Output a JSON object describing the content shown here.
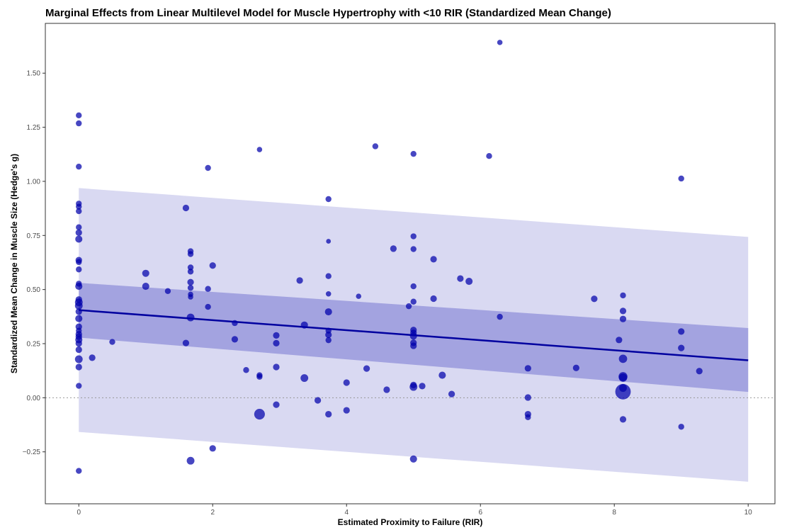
{
  "chart_data": {
    "type": "scatter",
    "title": "Marginal Effects from Linear Multilevel Model for Muscle Hypertrophy with <10 RIR (Standardized Mean Change)",
    "xlabel": "Estimated Proximity to Failure (RIR)",
    "ylabel": "Standardized Mean Change in Muscle Size (Hedge's g)",
    "xlim": [
      -0.5,
      10.4
    ],
    "ylim": [
      -0.49,
      1.73
    ],
    "x_ticks": [
      0,
      2,
      4,
      6,
      8,
      10
    ],
    "y_ticks": [
      -0.25,
      0.0,
      0.25,
      0.5,
      0.75,
      1.0,
      1.25,
      1.5
    ],
    "y_tick_labels": [
      "−0.25",
      "0.00",
      "0.25",
      "0.50",
      "0.75",
      "1.00",
      "1.25",
      "1.50"
    ],
    "grid": false,
    "reference_line": {
      "y": 0,
      "style": "dotted"
    },
    "fit_line": {
      "x": [
        0,
        10
      ],
      "y": [
        0.405,
        0.173
      ]
    },
    "ci_inner": {
      "x": [
        0,
        10
      ],
      "lower": [
        0.278,
        0.027
      ],
      "upper": [
        0.531,
        0.322
      ]
    },
    "pi_outer": {
      "x": [
        0,
        10
      ],
      "lower": [
        -0.158,
        -0.388
      ],
      "upper": [
        0.969,
        0.743
      ]
    },
    "colors": {
      "points": "#0000aa",
      "fit_line": "#00009f",
      "ci_band": "#a3a3e0",
      "pi_band": "#d9d9f2",
      "zero_line": "#999999"
    },
    "points": [
      {
        "x": 0,
        "y": 1.305,
        "s": 1.0
      },
      {
        "x": 0,
        "y": 1.268,
        "s": 1.0
      },
      {
        "x": 0,
        "y": 1.068,
        "s": 1.0
      },
      {
        "x": 0,
        "y": 0.897,
        "s": 1.0
      },
      {
        "x": 0,
        "y": 0.883,
        "s": 1.0
      },
      {
        "x": 0,
        "y": 0.862,
        "s": 1.0
      },
      {
        "x": 0,
        "y": 0.788,
        "s": 1.0
      },
      {
        "x": 0,
        "y": 0.763,
        "s": 1.1
      },
      {
        "x": 0,
        "y": 0.733,
        "s": 1.2
      },
      {
        "x": 0,
        "y": 0.636,
        "s": 1.1
      },
      {
        "x": 0,
        "y": 0.627,
        "s": 1.0
      },
      {
        "x": 0,
        "y": 0.593,
        "s": 1.0
      },
      {
        "x": 0,
        "y": 0.527,
        "s": 1.0
      },
      {
        "x": 0,
        "y": 0.515,
        "s": 1.2
      },
      {
        "x": 0,
        "y": 0.454,
        "s": 1.1
      },
      {
        "x": 0,
        "y": 0.441,
        "s": 1.3
      },
      {
        "x": 0,
        "y": 0.425,
        "s": 1.3
      },
      {
        "x": 0,
        "y": 0.398,
        "s": 1.1
      },
      {
        "x": 0,
        "y": 0.366,
        "s": 1.2
      },
      {
        "x": 0,
        "y": 0.328,
        "s": 1.1
      },
      {
        "x": 0,
        "y": 0.31,
        "s": 1.0
      },
      {
        "x": 0,
        "y": 0.294,
        "s": 1.1
      },
      {
        "x": 0,
        "y": 0.282,
        "s": 1.1
      },
      {
        "x": 0,
        "y": 0.268,
        "s": 1.2
      },
      {
        "x": 0,
        "y": 0.251,
        "s": 1.1
      },
      {
        "x": 0,
        "y": 0.222,
        "s": 1.1
      },
      {
        "x": 0,
        "y": 0.178,
        "s": 1.3
      },
      {
        "x": 0,
        "y": 0.142,
        "s": 1.1
      },
      {
        "x": 0,
        "y": 0.055,
        "s": 1.0
      },
      {
        "x": 0,
        "y": -0.338,
        "s": 1.0
      },
      {
        "x": 0.2,
        "y": 0.185,
        "s": 1.1
      },
      {
        "x": 0.5,
        "y": 0.258,
        "s": 1.0
      },
      {
        "x": 1.0,
        "y": 0.575,
        "s": 1.2
      },
      {
        "x": 1.0,
        "y": 0.515,
        "s": 1.2
      },
      {
        "x": 1.33,
        "y": 0.493,
        "s": 1.0
      },
      {
        "x": 1.6,
        "y": 0.877,
        "s": 1.1
      },
      {
        "x": 1.6,
        "y": 0.253,
        "s": 1.1
      },
      {
        "x": 1.67,
        "y": 0.677,
        "s": 1.0
      },
      {
        "x": 1.67,
        "y": 0.664,
        "s": 1.0
      },
      {
        "x": 1.67,
        "y": 0.602,
        "s": 1.0
      },
      {
        "x": 1.67,
        "y": 0.583,
        "s": 1.0
      },
      {
        "x": 1.67,
        "y": 0.534,
        "s": 1.1
      },
      {
        "x": 1.67,
        "y": 0.508,
        "s": 1.0
      },
      {
        "x": 1.67,
        "y": 0.478,
        "s": 0.9
      },
      {
        "x": 1.67,
        "y": 0.466,
        "s": 0.9
      },
      {
        "x": 1.67,
        "y": 0.371,
        "s": 1.3
      },
      {
        "x": 1.67,
        "y": -0.291,
        "s": 1.3
      },
      {
        "x": 1.93,
        "y": 1.062,
        "s": 1.0
      },
      {
        "x": 1.93,
        "y": 0.503,
        "s": 1.0
      },
      {
        "x": 1.93,
        "y": 0.42,
        "s": 1.0
      },
      {
        "x": 2.0,
        "y": 0.611,
        "s": 1.1
      },
      {
        "x": 2.0,
        "y": -0.234,
        "s": 1.1
      },
      {
        "x": 2.33,
        "y": 0.345,
        "s": 1.0
      },
      {
        "x": 2.33,
        "y": 0.27,
        "s": 1.1
      },
      {
        "x": 2.5,
        "y": 0.128,
        "s": 1.0
      },
      {
        "x": 2.7,
        "y": 1.147,
        "s": 0.9
      },
      {
        "x": 2.7,
        "y": 0.104,
        "s": 1.0
      },
      {
        "x": 2.7,
        "y": 0.097,
        "s": 1.0
      },
      {
        "x": 2.7,
        "y": -0.076,
        "s": 1.8
      },
      {
        "x": 2.95,
        "y": 0.288,
        "s": 1.1
      },
      {
        "x": 2.95,
        "y": 0.252,
        "s": 1.1
      },
      {
        "x": 2.95,
        "y": 0.142,
        "s": 1.1
      },
      {
        "x": 2.95,
        "y": -0.032,
        "s": 1.1
      },
      {
        "x": 3.3,
        "y": 0.542,
        "s": 1.1
      },
      {
        "x": 3.37,
        "y": 0.336,
        "s": 1.2
      },
      {
        "x": 3.37,
        "y": 0.091,
        "s": 1.3
      },
      {
        "x": 3.57,
        "y": -0.012,
        "s": 1.1
      },
      {
        "x": 3.73,
        "y": 0.918,
        "s": 1.0
      },
      {
        "x": 3.73,
        "y": 0.723,
        "s": 0.8
      },
      {
        "x": 3.73,
        "y": 0.562,
        "s": 1.0
      },
      {
        "x": 3.73,
        "y": 0.48,
        "s": 0.9
      },
      {
        "x": 3.73,
        "y": 0.397,
        "s": 1.2
      },
      {
        "x": 3.73,
        "y": 0.31,
        "s": 1.0
      },
      {
        "x": 3.73,
        "y": 0.291,
        "s": 1.1
      },
      {
        "x": 3.73,
        "y": 0.266,
        "s": 1.0
      },
      {
        "x": 3.73,
        "y": -0.076,
        "s": 1.1
      },
      {
        "x": 4.0,
        "y": 0.07,
        "s": 1.1
      },
      {
        "x": 4.0,
        "y": -0.058,
        "s": 1.1
      },
      {
        "x": 4.18,
        "y": 0.469,
        "s": 0.9
      },
      {
        "x": 4.3,
        "y": 0.135,
        "s": 1.1
      },
      {
        "x": 4.43,
        "y": 1.162,
        "s": 1.0
      },
      {
        "x": 4.6,
        "y": 0.037,
        "s": 1.1
      },
      {
        "x": 4.7,
        "y": 0.689,
        "s": 1.1
      },
      {
        "x": 4.93,
        "y": 0.423,
        "s": 1.0
      },
      {
        "x": 5.0,
        "y": 1.127,
        "s": 1.0
      },
      {
        "x": 5.0,
        "y": 0.746,
        "s": 1.0
      },
      {
        "x": 5.0,
        "y": 0.687,
        "s": 1.0
      },
      {
        "x": 5.0,
        "y": 0.515,
        "s": 1.0
      },
      {
        "x": 5.0,
        "y": 0.444,
        "s": 1.0
      },
      {
        "x": 5.0,
        "y": 0.313,
        "s": 1.1
      },
      {
        "x": 5.0,
        "y": 0.3,
        "s": 1.1
      },
      {
        "x": 5.0,
        "y": 0.285,
        "s": 1.2
      },
      {
        "x": 5.0,
        "y": 0.254,
        "s": 1.1
      },
      {
        "x": 5.0,
        "y": 0.24,
        "s": 1.1
      },
      {
        "x": 5.0,
        "y": 0.059,
        "s": 1.1
      },
      {
        "x": 5.0,
        "y": 0.05,
        "s": 1.3
      },
      {
        "x": 5.0,
        "y": -0.283,
        "s": 1.2
      },
      {
        "x": 5.13,
        "y": 0.054,
        "s": 1.1
      },
      {
        "x": 5.3,
        "y": 0.64,
        "s": 1.1
      },
      {
        "x": 5.3,
        "y": 0.458,
        "s": 1.1
      },
      {
        "x": 5.43,
        "y": 0.104,
        "s": 1.2
      },
      {
        "x": 5.57,
        "y": 0.017,
        "s": 1.1
      },
      {
        "x": 5.7,
        "y": 0.551,
        "s": 1.1
      },
      {
        "x": 5.83,
        "y": 0.538,
        "s": 1.2
      },
      {
        "x": 6.13,
        "y": 1.117,
        "s": 1.0
      },
      {
        "x": 6.29,
        "y": 1.642,
        "s": 0.9
      },
      {
        "x": 6.29,
        "y": 0.374,
        "s": 1.0
      },
      {
        "x": 6.71,
        "y": 0.136,
        "s": 1.1
      },
      {
        "x": 6.71,
        "y": 0.001,
        "s": 1.1
      },
      {
        "x": 6.71,
        "y": -0.076,
        "s": 1.1
      },
      {
        "x": 6.71,
        "y": -0.09,
        "s": 1.0
      },
      {
        "x": 7.43,
        "y": 0.138,
        "s": 1.1
      },
      {
        "x": 7.7,
        "y": 0.457,
        "s": 1.1
      },
      {
        "x": 8.07,
        "y": 0.267,
        "s": 1.1
      },
      {
        "x": 8.13,
        "y": 0.473,
        "s": 1.0
      },
      {
        "x": 8.13,
        "y": 0.401,
        "s": 1.1
      },
      {
        "x": 8.13,
        "y": 0.364,
        "s": 1.1
      },
      {
        "x": 8.13,
        "y": 0.18,
        "s": 1.4
      },
      {
        "x": 8.13,
        "y": 0.098,
        "s": 1.5
      },
      {
        "x": 8.13,
        "y": 0.093,
        "s": 1.4
      },
      {
        "x": 8.13,
        "y": 0.045,
        "s": 1.3
      },
      {
        "x": 8.13,
        "y": 0.028,
        "s": 2.6
      },
      {
        "x": 8.13,
        "y": -0.1,
        "s": 1.1
      },
      {
        "x": 9.0,
        "y": 1.013,
        "s": 1.0
      },
      {
        "x": 9.0,
        "y": 0.306,
        "s": 1.1
      },
      {
        "x": 9.0,
        "y": 0.23,
        "s": 1.1
      },
      {
        "x": 9.0,
        "y": -0.134,
        "s": 1.0
      },
      {
        "x": 9.27,
        "y": 0.123,
        "s": 1.1
      }
    ]
  }
}
